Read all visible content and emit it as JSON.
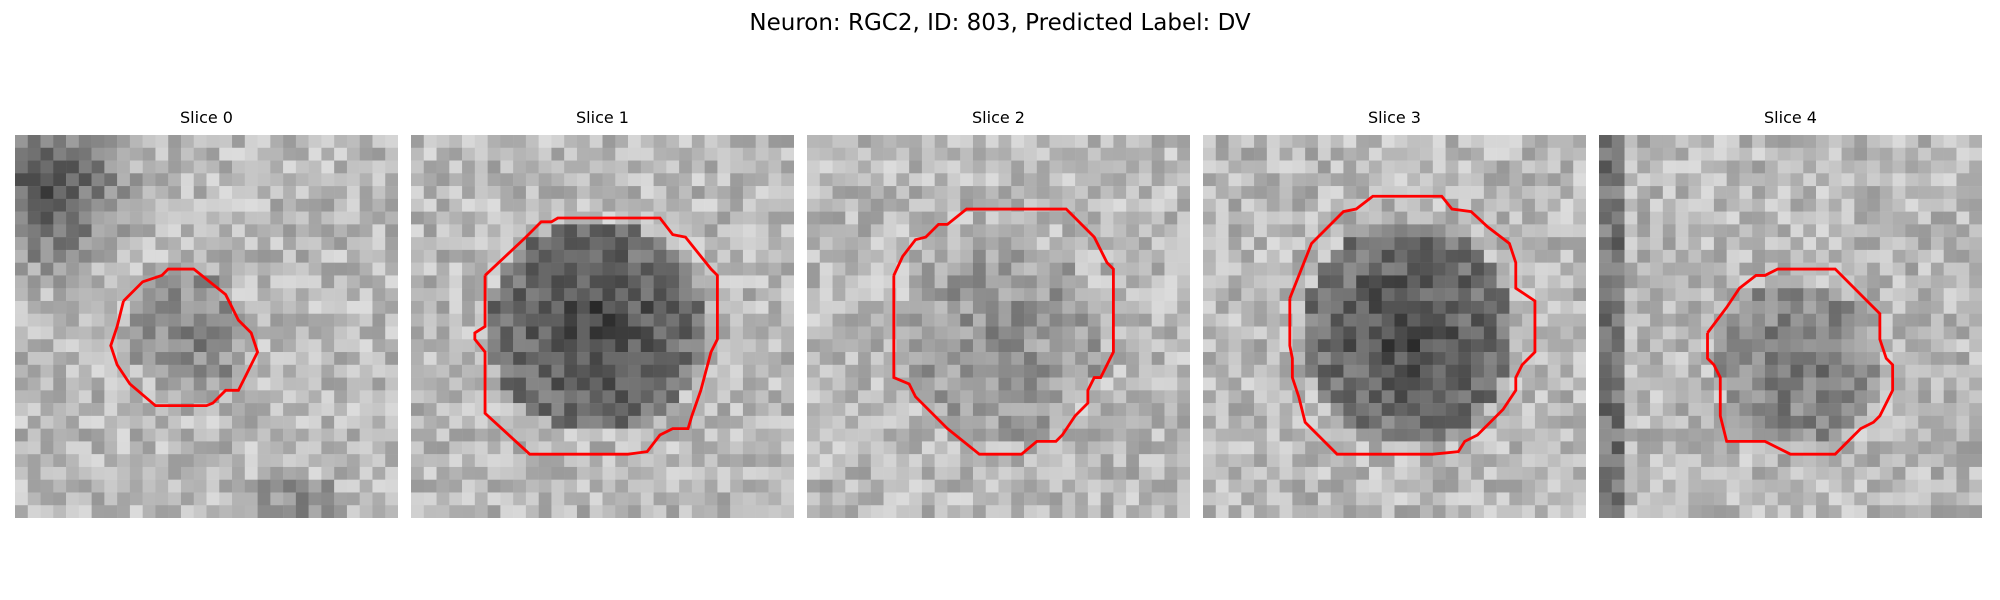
{
  "figure": {
    "suptitle": "Neuron: RGC2, ID: 803, Predicted Label: DV"
  },
  "panels": [
    {
      "title": "Slice 0"
    },
    {
      "title": "Slice 1"
    },
    {
      "title": "Slice 2"
    },
    {
      "title": "Slice 3"
    },
    {
      "title": "Slice 4"
    }
  ],
  "colors": {
    "contour": "#ff0000",
    "background": "#ffffff"
  }
}
